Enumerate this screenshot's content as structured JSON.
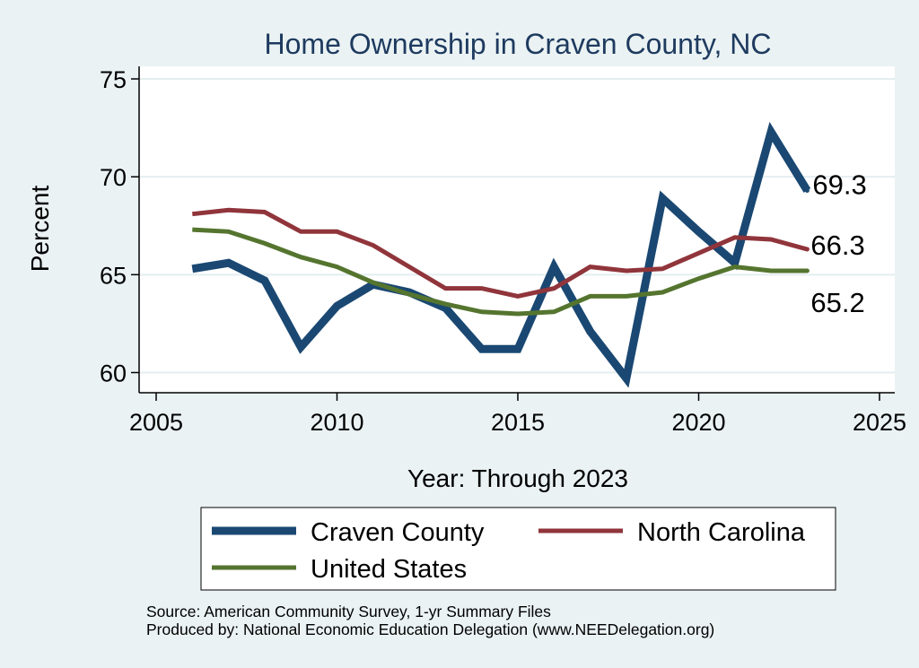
{
  "chart_data": {
    "type": "line",
    "title": "Home Ownership in Craven County, NC",
    "xlabel": "Year: Through 2023",
    "ylabel": "Percent",
    "xlim": [
      2005,
      2025
    ],
    "ylim": [
      59.5,
      75.5
    ],
    "xticks": [
      "2005",
      "2010",
      "2015",
      "2020",
      "2025"
    ],
    "yticks": [
      "60",
      "65",
      "70",
      "75"
    ],
    "grid": true,
    "legend_position": "bottom",
    "x": [
      2006,
      2007,
      2008,
      2009,
      2010,
      2011,
      2012,
      2013,
      2014,
      2015,
      2016,
      2017,
      2018,
      2019,
      2020,
      2021,
      2022,
      2023
    ],
    "series": [
      {
        "name": "Craven County",
        "color": "#1a4872",
        "values": [
          65.3,
          65.6,
          64.7,
          61.3,
          63.4,
          64.5,
          64.1,
          63.3,
          61.2,
          61.2,
          65.4,
          62.1,
          59.7,
          68.9,
          67.2,
          65.6,
          72.3,
          69.3
        ],
        "end_label": "69.3"
      },
      {
        "name": "North Carolina",
        "color": "#90353b",
        "values": [
          68.1,
          68.3,
          68.2,
          67.2,
          67.2,
          66.5,
          65.4,
          64.3,
          64.3,
          63.9,
          64.3,
          65.4,
          65.2,
          65.3,
          66.1,
          66.9,
          66.8,
          66.3
        ],
        "end_label": "66.3"
      },
      {
        "name": "United States",
        "color": "#55752f",
        "values": [
          67.3,
          67.2,
          66.6,
          65.9,
          65.4,
          64.6,
          64.0,
          63.5,
          63.1,
          63.0,
          63.1,
          63.9,
          63.9,
          64.1,
          64.8,
          65.4,
          65.2,
          65.2
        ],
        "end_label": "65.2"
      }
    ]
  },
  "footnotes": {
    "source": "Source: American Community Survey, 1-yr Summary Files",
    "produced": "Produced by: National Economic Education Delegation (www.NEEDelegation.org)"
  }
}
